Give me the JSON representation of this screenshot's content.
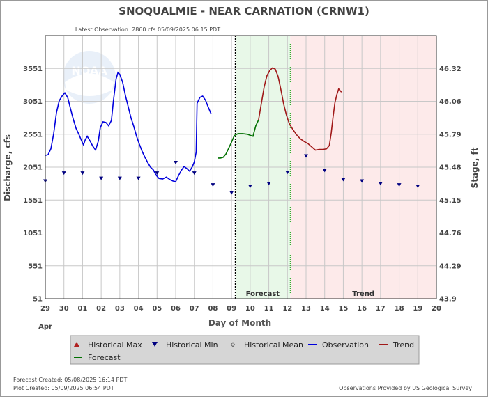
{
  "header": {
    "title": "SNOQUALMIE - NEAR CARNATION  (CRNW1)",
    "subtitle": "Latest Observation: 2860 cfs 05/09/2025 06:15 PDT"
  },
  "footer": {
    "forecast_created": "Forecast Created: 05/08/2025 16:14 PDT",
    "plot_created": "Plot Created: 05/09/2025 06:54 PDT",
    "credit": "Observations Provided by US Geological Survey"
  },
  "colors": {
    "observation": "#0000dd",
    "forecast": "#007000",
    "trend": "#a01818",
    "forecast_bg": "#e8f8e8",
    "trend_bg": "#fdeaea",
    "marker": "#000080",
    "grid": "#c8c8c8"
  },
  "chart_data": {
    "type": "line",
    "xlabel": "Day of Month",
    "ylabel": "Discharge, cfs",
    "y2label": "Stage, ft",
    "xlim": [
      0,
      21
    ],
    "ylim": [
      51,
      4051
    ],
    "x_ticks": [
      "29",
      "30",
      "01",
      "02",
      "03",
      "04",
      "05",
      "06",
      "07",
      "08",
      "09",
      "10",
      "11",
      "12",
      "13",
      "14",
      "15",
      "16",
      "17",
      "18",
      "19",
      "20"
    ],
    "x_month_label": "Apr",
    "y_ticks": [
      51,
      551,
      1051,
      1551,
      2051,
      2551,
      3051,
      3551
    ],
    "y2_ticks": [
      "43.9",
      "44.29",
      "44.76",
      "45.15",
      "45.48",
      "45.79",
      "46.06",
      "46.32"
    ],
    "regions": [
      {
        "label": "Forecast",
        "x_start": 10.2,
        "x_end": 13.15
      },
      {
        "label": "Trend",
        "x_start": 13.15,
        "x_end": 21
      }
    ],
    "now_line_x": 10.2,
    "series": [
      {
        "name": "Observation",
        "points": [
          [
            0,
            2230
          ],
          [
            0.15,
            2240
          ],
          [
            0.3,
            2330
          ],
          [
            0.45,
            2560
          ],
          [
            0.6,
            2880
          ],
          [
            0.75,
            3060
          ],
          [
            0.9,
            3130
          ],
          [
            1.05,
            3180
          ],
          [
            1.2,
            3110
          ],
          [
            1.35,
            2940
          ],
          [
            1.5,
            2780
          ],
          [
            1.65,
            2640
          ],
          [
            1.8,
            2550
          ],
          [
            1.95,
            2450
          ],
          [
            2.05,
            2390
          ],
          [
            2.15,
            2470
          ],
          [
            2.25,
            2520
          ],
          [
            2.4,
            2450
          ],
          [
            2.55,
            2370
          ],
          [
            2.7,
            2310
          ],
          [
            2.85,
            2450
          ],
          [
            2.95,
            2650
          ],
          [
            3.1,
            2740
          ],
          [
            3.25,
            2730
          ],
          [
            3.4,
            2680
          ],
          [
            3.55,
            2760
          ],
          [
            3.65,
            3040
          ],
          [
            3.8,
            3390
          ],
          [
            3.9,
            3490
          ],
          [
            4.0,
            3460
          ],
          [
            4.15,
            3340
          ],
          [
            4.3,
            3140
          ],
          [
            4.45,
            2970
          ],
          [
            4.6,
            2800
          ],
          [
            4.75,
            2670
          ],
          [
            4.9,
            2520
          ],
          [
            5.05,
            2400
          ],
          [
            5.2,
            2290
          ],
          [
            5.35,
            2200
          ],
          [
            5.5,
            2120
          ],
          [
            5.65,
            2050
          ],
          [
            5.8,
            2010
          ],
          [
            5.95,
            1930
          ],
          [
            6.1,
            1880
          ],
          [
            6.3,
            1870
          ],
          [
            6.5,
            1900
          ],
          [
            6.7,
            1860
          ],
          [
            6.85,
            1840
          ],
          [
            7.0,
            1830
          ],
          [
            7.15,
            1920
          ],
          [
            7.3,
            2000
          ],
          [
            7.45,
            2060
          ],
          [
            7.6,
            2030
          ],
          [
            7.75,
            1990
          ],
          [
            7.9,
            2060
          ],
          [
            8.0,
            2130
          ],
          [
            8.1,
            2280
          ],
          [
            8.15,
            3020
          ],
          [
            8.3,
            3110
          ],
          [
            8.45,
            3130
          ],
          [
            8.6,
            3070
          ],
          [
            8.75,
            2960
          ],
          [
            8.9,
            2860
          ]
        ]
      },
      {
        "name": "Forecast",
        "points": [
          [
            9.25,
            2190
          ],
          [
            9.4,
            2190
          ],
          [
            9.55,
            2200
          ],
          [
            9.7,
            2250
          ],
          [
            9.85,
            2340
          ],
          [
            10.0,
            2430
          ],
          [
            10.15,
            2530
          ],
          [
            10.35,
            2560
          ],
          [
            10.6,
            2560
          ],
          [
            10.85,
            2550
          ],
          [
            11.05,
            2530
          ],
          [
            11.15,
            2520
          ],
          [
            11.3,
            2680
          ],
          [
            11.45,
            2770
          ]
        ]
      },
      {
        "name": "Trend",
        "points": [
          [
            11.45,
            2770
          ],
          [
            11.6,
            3020
          ],
          [
            11.75,
            3270
          ],
          [
            11.9,
            3440
          ],
          [
            12.05,
            3520
          ],
          [
            12.2,
            3560
          ],
          [
            12.35,
            3540
          ],
          [
            12.5,
            3430
          ],
          [
            12.65,
            3230
          ],
          [
            12.8,
            3010
          ],
          [
            12.95,
            2840
          ],
          [
            13.1,
            2710
          ],
          [
            13.3,
            2620
          ],
          [
            13.5,
            2540
          ],
          [
            13.7,
            2480
          ],
          [
            13.9,
            2440
          ],
          [
            14.1,
            2410
          ],
          [
            14.3,
            2360
          ],
          [
            14.5,
            2310
          ],
          [
            14.7,
            2320
          ],
          [
            14.9,
            2320
          ],
          [
            15.1,
            2330
          ],
          [
            15.25,
            2380
          ],
          [
            15.35,
            2570
          ],
          [
            15.45,
            2810
          ],
          [
            15.55,
            3030
          ],
          [
            15.65,
            3150
          ],
          [
            15.75,
            3240
          ],
          [
            15.9,
            3190
          ]
        ]
      }
    ],
    "historical_min": {
      "name": "Historical Min",
      "points": [
        [
          0,
          1840
        ],
        [
          1,
          1960
        ],
        [
          2,
          1960
        ],
        [
          3,
          1880
        ],
        [
          4,
          1880
        ],
        [
          5,
          1880
        ],
        [
          6,
          1960
        ],
        [
          7,
          2120
        ],
        [
          8,
          1960
        ],
        [
          9,
          1780
        ],
        [
          10,
          1660
        ],
        [
          11,
          1760
        ],
        [
          12,
          1800
        ],
        [
          13,
          1970
        ],
        [
          14,
          2220
        ],
        [
          15,
          2000
        ],
        [
          16,
          1860
        ],
        [
          17,
          1840
        ],
        [
          18,
          1800
        ],
        [
          19,
          1780
        ],
        [
          20,
          1760
        ]
      ]
    },
    "legend": [
      {
        "label": "Historical Max",
        "symbol": "triangle-up",
        "color": "#b02020"
      },
      {
        "label": "Historical Min",
        "symbol": "triangle-down",
        "color": "#000080"
      },
      {
        "label": "Historical Mean",
        "symbol": "diamond",
        "color": "#666666"
      },
      {
        "label": "Observation",
        "symbol": "line",
        "color": "#0000dd"
      },
      {
        "label": "Trend",
        "symbol": "line",
        "color": "#a01818"
      },
      {
        "label": "Forecast",
        "symbol": "line",
        "color": "#007000"
      }
    ]
  }
}
